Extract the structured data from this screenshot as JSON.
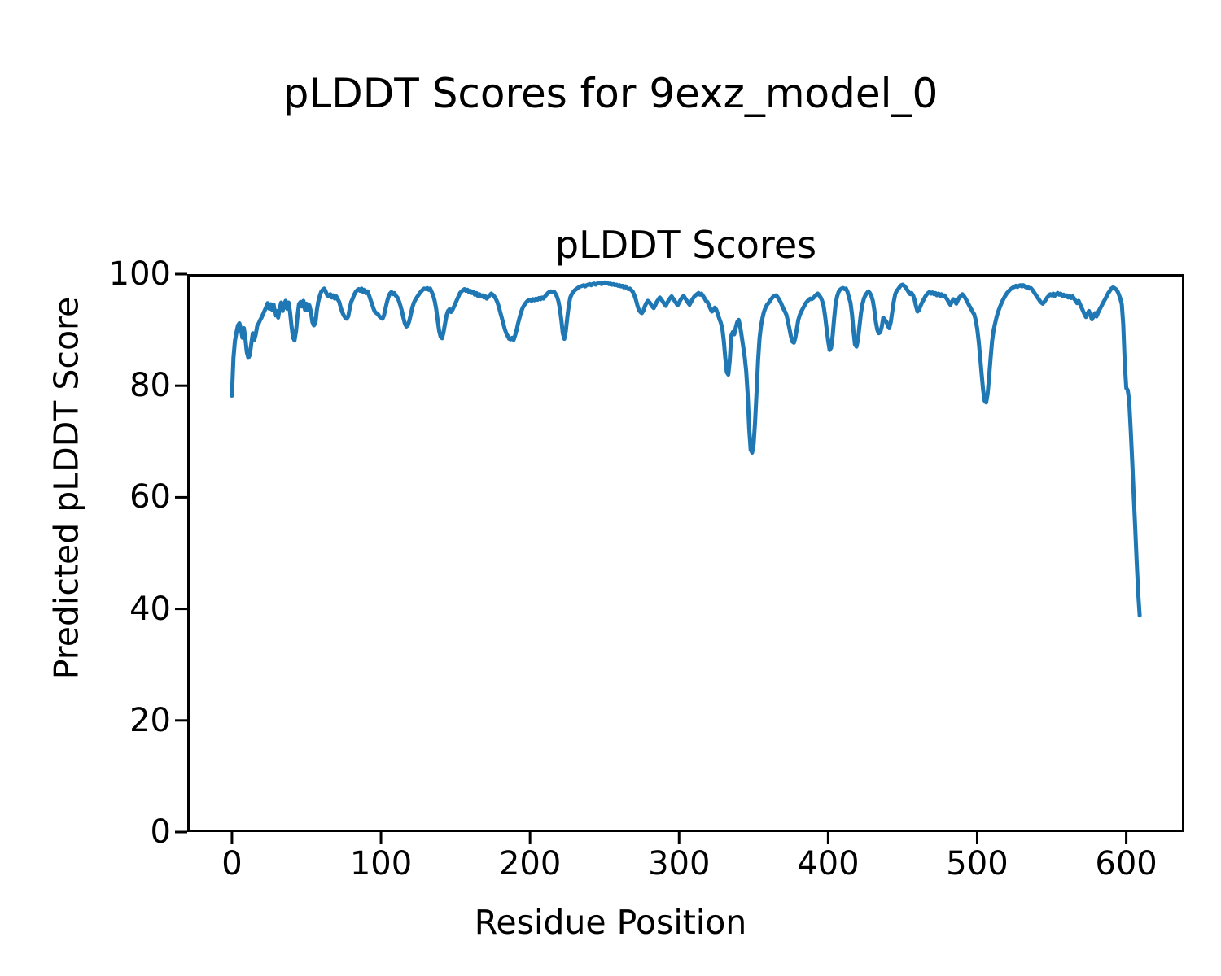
{
  "figure": {
    "suptitle": "pLDDT Scores for 9exz_model_0",
    "background_color": "#ffffff",
    "text_color": "#000000"
  },
  "chart_data": {
    "type": "line",
    "title": "pLDDT Scores",
    "xlabel": "Residue Position",
    "ylabel": "Predicted pLDDT Score",
    "xlim": [
      -30,
      639
    ],
    "ylim": [
      0,
      100
    ],
    "xticks": [
      0,
      100,
      200,
      300,
      400,
      500,
      600
    ],
    "yticks": [
      0,
      20,
      40,
      60,
      80,
      100
    ],
    "grid": false,
    "legend": false,
    "spine_color": "#000000",
    "series": [
      {
        "name": "pLDDT",
        "color": "#1f77b4",
        "x_start": 0,
        "x_step": 1,
        "values": [
          78.2,
          85.0,
          88.0,
          89.5,
          90.8,
          91.2,
          90.2,
          88.6,
          90.3,
          88.5,
          86.0,
          85.0,
          85.5,
          87.5,
          89.4,
          88.2,
          89.2,
          90.8,
          91.2,
          91.8,
          92.3,
          92.9,
          93.5,
          94.1,
          94.8,
          93.8,
          94.6,
          93.6,
          94.5,
          92.6,
          93.4,
          92.2,
          93.8,
          94.9,
          93.4,
          94.6,
          95.2,
          93.8,
          94.9,
          93.2,
          90.6,
          88.6,
          88.1,
          89.8,
          92.5,
          94.6,
          95.0,
          94.2,
          95.2,
          93.6,
          94.7,
          93.5,
          94.4,
          93.2,
          91.4,
          90.8,
          91.2,
          93.6,
          95.1,
          96.2,
          96.9,
          97.2,
          97.4,
          96.8,
          96.2,
          96.0,
          96.4,
          95.8,
          96.2,
          95.6,
          96.0,
          95.5,
          95.0,
          94.0,
          93.2,
          92.6,
          92.2,
          92.0,
          92.4,
          93.8,
          95.0,
          95.6,
          96.3,
          96.8,
          97.1,
          97.3,
          97.0,
          97.4,
          96.8,
          97.2,
          96.6,
          96.9,
          96.2,
          95.4,
          94.6,
          93.8,
          93.2,
          93.0,
          92.8,
          92.4,
          92.2,
          92.0,
          92.6,
          93.8,
          95.0,
          95.9,
          96.5,
          96.8,
          96.4,
          96.6,
          96.1,
          95.8,
          95.2,
          94.4,
          93.4,
          92.2,
          91.2,
          90.6,
          90.8,
          91.6,
          92.8,
          94.0,
          94.8,
          95.4,
          95.8,
          96.2,
          96.6,
          96.9,
          97.2,
          97.4,
          97.3,
          97.5,
          97.2,
          97.4,
          96.8,
          96.2,
          95.2,
          93.8,
          91.8,
          89.8,
          88.8,
          88.5,
          89.6,
          91.2,
          92.6,
          93.4,
          93.7,
          93.2,
          93.6,
          94.2,
          94.8,
          95.4,
          96.0,
          96.6,
          96.9,
          97.1,
          97.3,
          97.0,
          97.2,
          96.8,
          97.0,
          96.6,
          96.8,
          96.3,
          96.6,
          96.1,
          96.4,
          96.0,
          96.2,
          95.8,
          96.0,
          95.6,
          95.9,
          96.2,
          96.5,
          96.3,
          96.0,
          95.6,
          95.0,
          94.2,
          93.2,
          92.2,
          91.2,
          90.2,
          89.4,
          88.9,
          88.4,
          88.3,
          88.6,
          88.2,
          89.0,
          90.0,
          91.2,
          92.2,
          93.2,
          93.9,
          94.4,
          94.8,
          95.1,
          95.3,
          95.4,
          95.2,
          95.5,
          95.3,
          95.6,
          95.4,
          95.7,
          95.5,
          95.8,
          95.6,
          96.0,
          96.3,
          96.6,
          96.8,
          96.9,
          96.7,
          96.9,
          96.5,
          96.0,
          95.2,
          93.8,
          91.8,
          89.4,
          88.4,
          89.8,
          92.2,
          94.4,
          95.8,
          96.4,
          96.8,
          97.1,
          97.3,
          97.5,
          97.7,
          97.8,
          97.9,
          98.0,
          97.8,
          98.0,
          98.1,
          98.2,
          98.0,
          98.2,
          98.3,
          98.1,
          98.3,
          98.4,
          98.4,
          98.2,
          98.4,
          98.5,
          98.3,
          98.4,
          98.2,
          98.3,
          98.1,
          98.2,
          98.0,
          98.1,
          97.9,
          98.0,
          97.8,
          97.9,
          97.6,
          97.8,
          97.5,
          97.3,
          97.4,
          97.1,
          96.8,
          96.2,
          95.4,
          94.4,
          93.6,
          93.2,
          93.0,
          93.4,
          94.2,
          94.8,
          95.2,
          95.0,
          94.6,
          94.2,
          93.9,
          94.4,
          95.0,
          95.4,
          95.8,
          95.5,
          95.1,
          94.7,
          94.3,
          94.8,
          95.3,
          95.7,
          96.0,
          95.6,
          95.2,
          94.8,
          94.4,
          94.9,
          95.4,
          95.8,
          96.1,
          95.7,
          95.3,
          94.9,
          94.5,
          95.0,
          95.5,
          95.9,
          96.2,
          96.4,
          96.6,
          96.3,
          96.5,
          96.1,
          95.7,
          95.2,
          95.0,
          94.4,
          93.8,
          93.3,
          93.5,
          94.0,
          93.6,
          92.8,
          92.0,
          91.3,
          90.2,
          88.0,
          85.0,
          82.4,
          82.0,
          84.5,
          88.9,
          89.6,
          89.2,
          90.4,
          91.4,
          91.8,
          90.6,
          88.8,
          87.0,
          85.2,
          82.6,
          78.5,
          72.5,
          68.5,
          68.0,
          69.5,
          73.5,
          79.0,
          84.5,
          88.5,
          90.8,
          92.2,
          93.3,
          94.0,
          94.5,
          94.8,
          95.2,
          95.6,
          95.9,
          96.1,
          96.2,
          95.9,
          95.5,
          95.0,
          94.4,
          93.8,
          93.3,
          92.7,
          91.6,
          90.2,
          88.9,
          87.9,
          87.7,
          88.6,
          90.2,
          91.8,
          92.7,
          93.3,
          93.8,
          94.3,
          94.8,
          95.1,
          95.4,
          95.6,
          95.5,
          95.7,
          96.0,
          96.3,
          96.5,
          96.2,
          95.8,
          95.2,
          94.2,
          92.4,
          90.2,
          88.0,
          86.4,
          86.8,
          89.0,
          92.0,
          94.6,
          96.0,
          96.8,
          97.2,
          97.4,
          97.5,
          97.3,
          97.4,
          96.8,
          95.8,
          94.9,
          92.8,
          89.8,
          87.4,
          87.0,
          88.2,
          90.6,
          93.0,
          94.6,
          95.6,
          96.2,
          96.6,
          96.9,
          96.6,
          96.1,
          95.2,
          93.6,
          91.4,
          90.0,
          89.4,
          89.6,
          90.6,
          92.2,
          91.8,
          91.5,
          90.8,
          90.3,
          91.4,
          93.2,
          95.0,
          96.4,
          97.0,
          97.3,
          97.7,
          98.0,
          98.1,
          97.9,
          97.6,
          97.2,
          96.8,
          96.4,
          96.6,
          96.2,
          95.4,
          94.2,
          93.3,
          93.6,
          94.3,
          94.9,
          95.4,
          95.9,
          96.3,
          96.6,
          96.8,
          96.5,
          96.7,
          96.4,
          96.6,
          96.2,
          96.5,
          96.1,
          96.4,
          96.0,
          96.2,
          95.8,
          95.4,
          94.9,
          94.5,
          95.0,
          95.5,
          95.2,
          94.7,
          95.3,
          95.8,
          96.1,
          96.4,
          96.1,
          95.7,
          95.2,
          94.7,
          94.2,
          93.7,
          93.2,
          92.8,
          91.8,
          90.2,
          88.0,
          85.2,
          82.0,
          79.2,
          77.3,
          77.0,
          78.5,
          81.5,
          85.0,
          88.0,
          89.9,
          91.2,
          92.3,
          93.2,
          93.9,
          94.6,
          95.2,
          95.7,
          96.2,
          96.6,
          96.9,
          97.2,
          97.4,
          97.6,
          97.7,
          97.9,
          97.7,
          97.9,
          98.0,
          97.8,
          98.0,
          97.8,
          97.6,
          97.7,
          97.4,
          97.5,
          97.2,
          96.8,
          96.4,
          96.0,
          95.6,
          95.2,
          94.9,
          94.7,
          95.0,
          95.4,
          95.8,
          96.1,
          96.4,
          96.2,
          96.5,
          96.1,
          96.4,
          96.6,
          96.3,
          96.5,
          96.1,
          96.3,
          96.0,
          96.2,
          95.8,
          96.1,
          95.7,
          96.0,
          95.6,
          95.2,
          94.8,
          95.2,
          94.6,
          94.0,
          93.4,
          92.8,
          92.3,
          92.9,
          93.4,
          92.6,
          91.9,
          92.4,
          93.0,
          92.4,
          93.0,
          93.6,
          94.1,
          94.6,
          95.1,
          95.6,
          96.1,
          96.6,
          97.0,
          97.4,
          97.6,
          97.5,
          97.3,
          97.0,
          96.4,
          95.6,
          94.6,
          91.0,
          84.0,
          79.6,
          79.2,
          77.3,
          72.0,
          66.5,
          60.5,
          54.5,
          48.5,
          43.0,
          38.8
        ]
      }
    ]
  }
}
